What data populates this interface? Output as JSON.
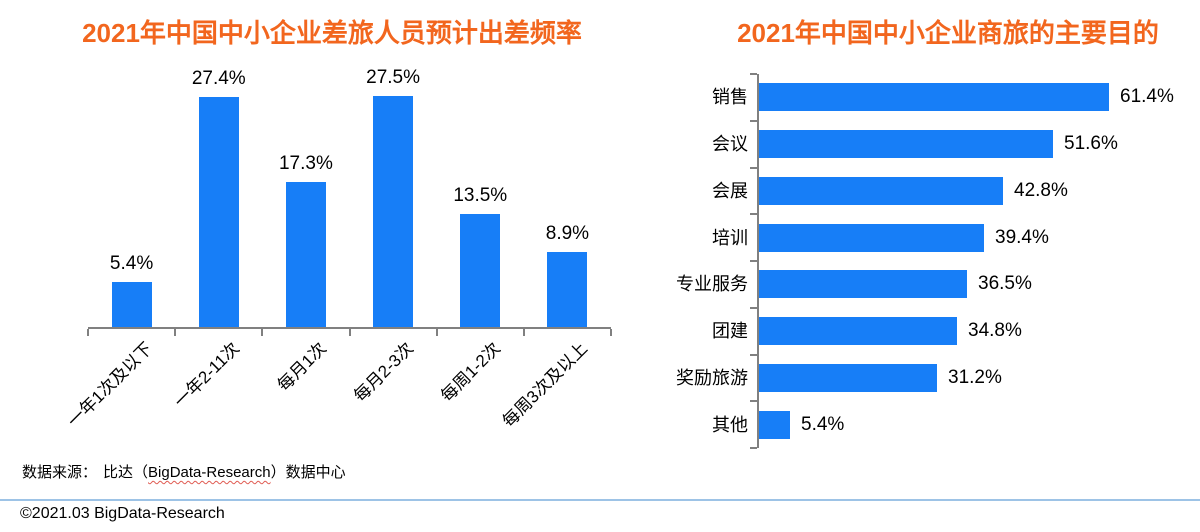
{
  "page": {
    "background": "#FFFFFF"
  },
  "theme": {
    "title_color": "#F2661E",
    "bar_color": "#177EF7",
    "axis_color": "#808080",
    "label_color": "#000000",
    "divider_color": "#9DC3E6"
  },
  "chart_data": [
    {
      "type": "bar",
      "orientation": "vertical",
      "title": "2021年中国中小企业差旅人员预计出差频率",
      "categories": [
        "一年1次及以下",
        "一年2-11次",
        "每月1次",
        "每月2-3次",
        "每周1-2次",
        "每周3次及以上"
      ],
      "values": [
        5.4,
        27.4,
        17.3,
        27.5,
        13.5,
        8.9
      ],
      "labels": [
        "5.4%",
        "27.4%",
        "17.3%",
        "27.5%",
        "13.5%",
        "8.9%"
      ],
      "ylim": [
        0,
        30
      ],
      "grid": false,
      "legend": "none"
    },
    {
      "type": "bar",
      "orientation": "horizontal",
      "title": "2021年中国中小企业商旅的主要目的",
      "categories": [
        "销售",
        "会议",
        "会展",
        "培训",
        "专业服务",
        "团建",
        "奖励旅游",
        "其他"
      ],
      "values": [
        61.4,
        51.6,
        42.8,
        39.4,
        36.5,
        34.8,
        31.2,
        5.4
      ],
      "labels": [
        "61.4%",
        "51.6%",
        "42.8%",
        "39.4%",
        "36.5%",
        "34.8%",
        "31.2%",
        "5.4%"
      ],
      "xlim": [
        0,
        70
      ],
      "grid": false,
      "legend": "none"
    }
  ],
  "footer": {
    "source_label": "数据来源：",
    "source_before": "比达（",
    "source_brand": "BigData-Research",
    "source_after": "）数据中心",
    "copyright": "©2021.03 BigData-Research"
  }
}
